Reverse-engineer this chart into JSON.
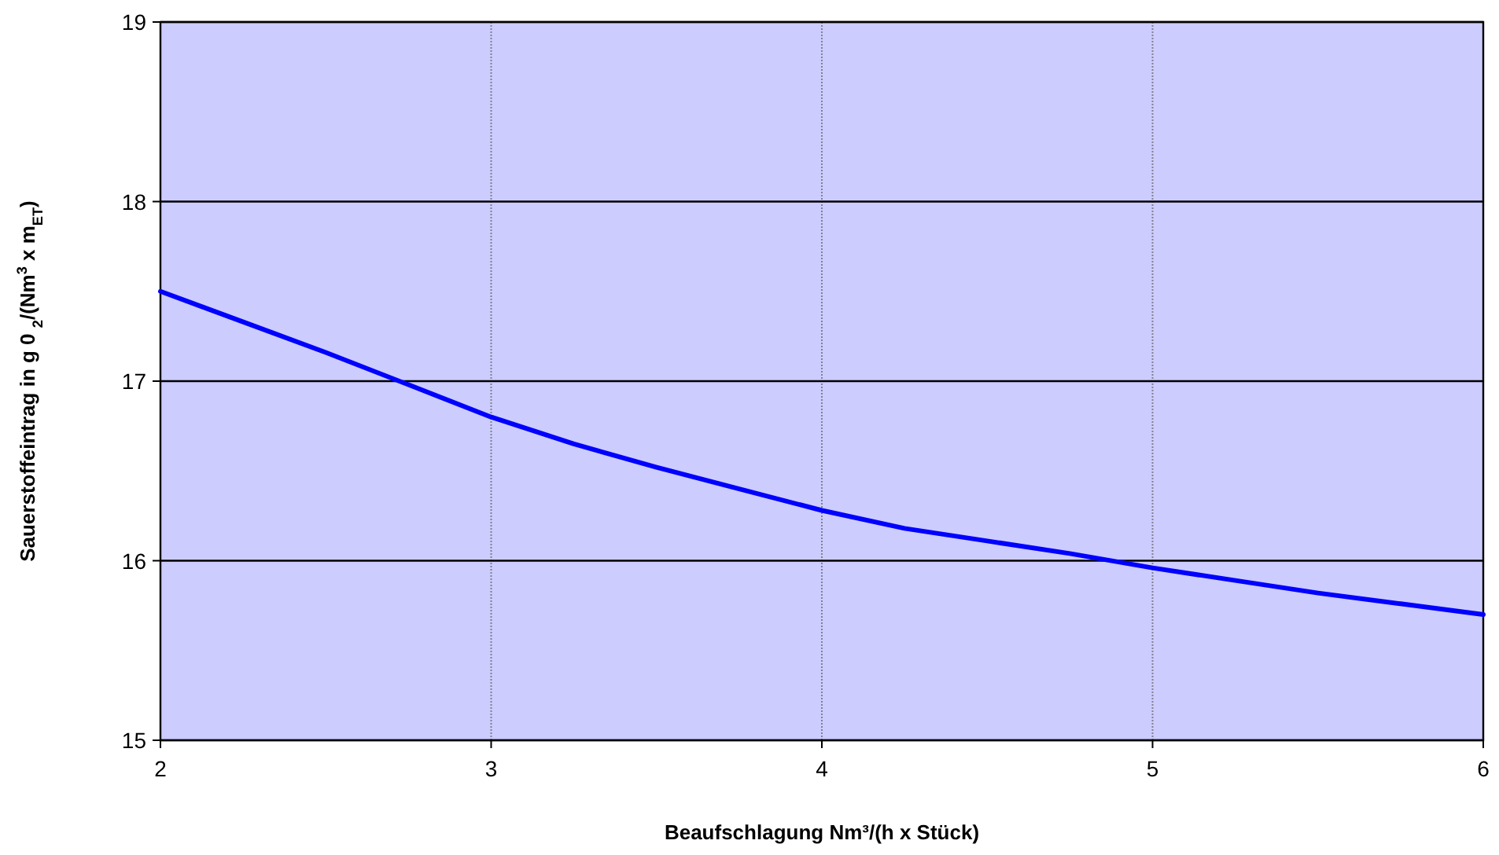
{
  "chart_data": {
    "type": "line",
    "xlabel": "Beaufschlagung Nm³/(h x Stück)",
    "ylabel": "Sauerstoffeintrag in g 0  $_{2}$/(Nm$^{3}$ x m$_{ET}$)",
    "x": [
      2,
      2.25,
      2.5,
      2.75,
      3,
      3.25,
      3.5,
      3.75,
      4,
      4.25,
      4.5,
      4.75,
      5,
      5.25,
      5.5,
      5.75,
      6
    ],
    "series": [
      {
        "color": "#0000ff",
        "values": [
          17.5,
          17.33,
          17.16,
          16.98,
          16.8,
          16.65,
          16.52,
          16.4,
          16.28,
          16.18,
          16.11,
          16.04,
          15.96,
          15.89,
          15.82,
          15.76,
          15.7
        ]
      }
    ],
    "xlim": [
      2,
      6
    ],
    "xticks": [
      2,
      3,
      4,
      5,
      6
    ],
    "ylim": [
      15,
      19
    ],
    "yticks": [
      15,
      16,
      17,
      18,
      19
    ],
    "grid": true,
    "marker": "none",
    "line_style": "solid"
  }
}
